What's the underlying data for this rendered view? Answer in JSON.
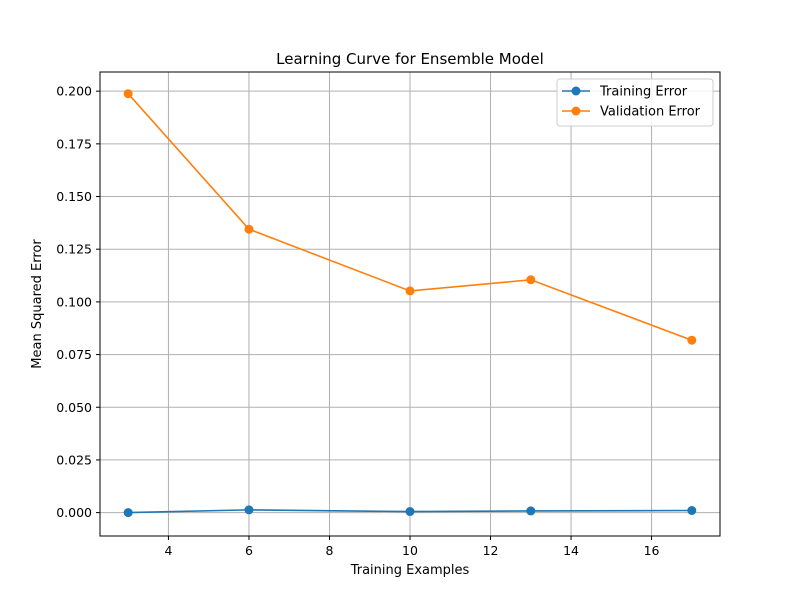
{
  "chart_data": {
    "type": "line",
    "title": "Learning Curve for Ensemble Model",
    "xlabel": "Training Examples",
    "ylabel": "Mean Squared Error",
    "x": [
      3,
      6,
      10,
      13,
      17
    ],
    "xlim": [
      2.3,
      17.7
    ],
    "ylim": [
      -0.0111,
      0.2091
    ],
    "xticks": [
      4,
      6,
      8,
      10,
      12,
      14,
      16
    ],
    "yticks": [
      0.0,
      0.025,
      0.05,
      0.075,
      0.1,
      0.125,
      0.15,
      0.175,
      0.2
    ],
    "xtick_labels": [
      "4",
      "6",
      "8",
      "10",
      "12",
      "14",
      "16"
    ],
    "ytick_labels": [
      "0.000",
      "0.025",
      "0.050",
      "0.075",
      "0.100",
      "0.125",
      "0.150",
      "0.175",
      "0.200"
    ],
    "grid": true,
    "legend_position": "top-right",
    "series": [
      {
        "name": "Training Error",
        "color": "#1f77b4",
        "values": [
          0.0,
          0.0013,
          0.0005,
          0.0008,
          0.001
        ]
      },
      {
        "name": "Validation Error",
        "color": "#ff7f0e",
        "values": [
          0.1988,
          0.1345,
          0.1052,
          0.1105,
          0.0818
        ]
      }
    ]
  }
}
